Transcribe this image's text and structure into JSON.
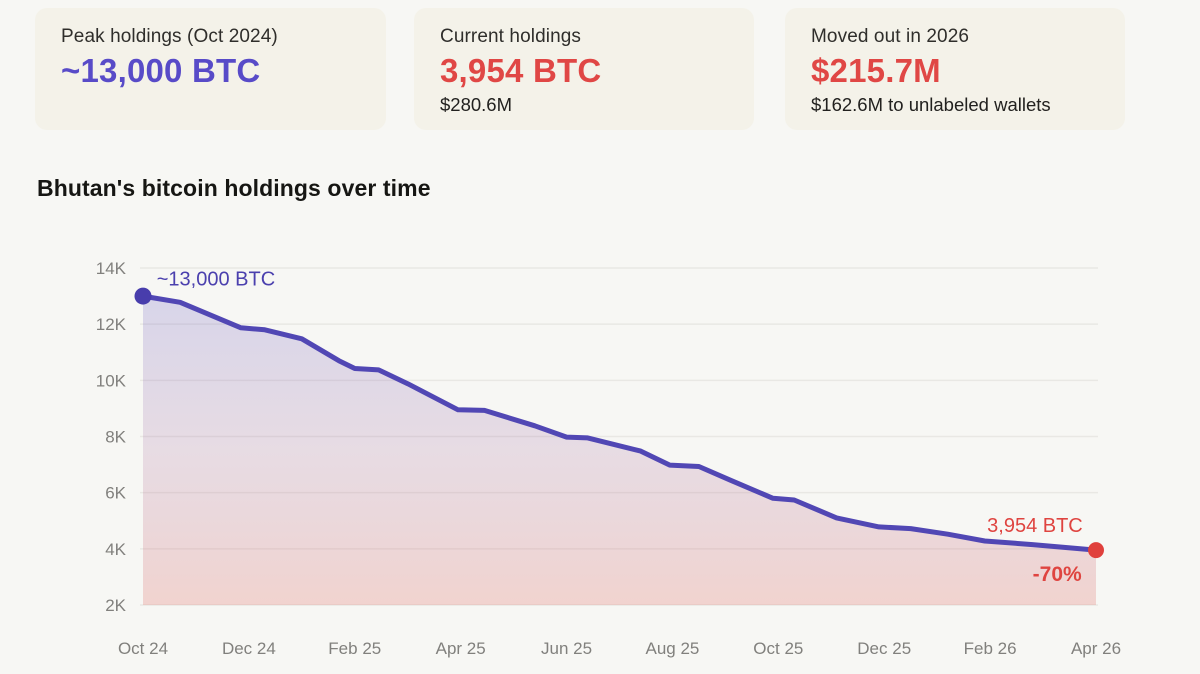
{
  "cards": [
    {
      "label": "Peak holdings (Oct 2024)",
      "value": "~13,000 BTC",
      "sub": "",
      "value_color": "#584bc8"
    },
    {
      "label": "Current holdings",
      "value": "3,954 BTC",
      "sub": "$280.6M",
      "value_color": "#e04745"
    },
    {
      "label": "Moved out in 2026",
      "value": "$215.7M",
      "sub": "$162.6M to unlabeled wallets",
      "value_color": "#e04745"
    }
  ],
  "section_title": "Bhutan's bitcoin holdings over time",
  "chart_data": {
    "type": "area",
    "title": "Bhutan's bitcoin holdings over time",
    "x_unit": "months since Oct 2024",
    "x_tick_months": [
      0,
      2,
      4,
      6,
      8,
      10,
      12,
      14,
      16,
      18
    ],
    "x_tick_labels": [
      "Oct 24",
      "Dec 24",
      "Feb 25",
      "Apr 25",
      "Jun 25",
      "Aug 25",
      "Oct 25",
      "Dec 25",
      "Feb 26",
      "Apr 26"
    ],
    "y_ticks": [
      14000,
      12000,
      10000,
      8000,
      6000,
      4000,
      2000
    ],
    "y_tick_labels": [
      "14K",
      "12K",
      "10K",
      "8K",
      "6K",
      "4K",
      "2K"
    ],
    "ylim": [
      2000,
      14000
    ],
    "grid": true,
    "legend": "none",
    "series": [
      {
        "name": "Bhutan BTC holdings",
        "points": [
          [
            0,
            13000
          ],
          [
            0.7,
            12780
          ],
          [
            1.85,
            11870
          ],
          [
            2.3,
            11800
          ],
          [
            3.0,
            11480
          ],
          [
            3.7,
            10700
          ],
          [
            4.0,
            10420
          ],
          [
            4.45,
            10370
          ],
          [
            5.0,
            9880
          ],
          [
            5.95,
            8950
          ],
          [
            6.45,
            8930
          ],
          [
            7.4,
            8380
          ],
          [
            8.0,
            7980
          ],
          [
            8.4,
            7950
          ],
          [
            9.4,
            7480
          ],
          [
            9.95,
            6980
          ],
          [
            10.5,
            6930
          ],
          [
            11.1,
            6440
          ],
          [
            11.9,
            5800
          ],
          [
            12.3,
            5740
          ],
          [
            13.1,
            5100
          ],
          [
            13.9,
            4780
          ],
          [
            14.5,
            4720
          ],
          [
            15.2,
            4520
          ],
          [
            15.9,
            4280
          ],
          [
            16.8,
            4150
          ],
          [
            18,
            3954
          ]
        ]
      }
    ],
    "markers": [
      {
        "name": "peak-point",
        "m": 0,
        "v": 13000,
        "color": "#483dac",
        "r": 8.5
      },
      {
        "name": "current-point",
        "m": 18,
        "v": 3954,
        "color": "#e0403c",
        "r": 8
      }
    ],
    "annotations": [
      {
        "text": "~13,000 BTC",
        "m": 0.26,
        "v": 13380,
        "anchor": "start",
        "color": "#4b40ae",
        "size": 20,
        "weight": 500
      },
      {
        "text": "3,954 BTC",
        "m": 17.75,
        "v": 4600,
        "anchor": "end",
        "color": "#df4440",
        "size": 20,
        "weight": 500
      },
      {
        "text": "-70%",
        "m": 17.73,
        "v": 2855,
        "anchor": "end",
        "color": "#df4440",
        "size": 21,
        "weight": 600
      }
    ],
    "colors": {
      "line": "#5147b4",
      "grid": "#e9e8e4",
      "axis_text": "#81807d",
      "area_top": "rgba(89,76,192,0.20)",
      "area_mid": "rgba(168,110,160,0.20)",
      "area_bottom": "rgba(226,118,110,0.28)"
    }
  }
}
